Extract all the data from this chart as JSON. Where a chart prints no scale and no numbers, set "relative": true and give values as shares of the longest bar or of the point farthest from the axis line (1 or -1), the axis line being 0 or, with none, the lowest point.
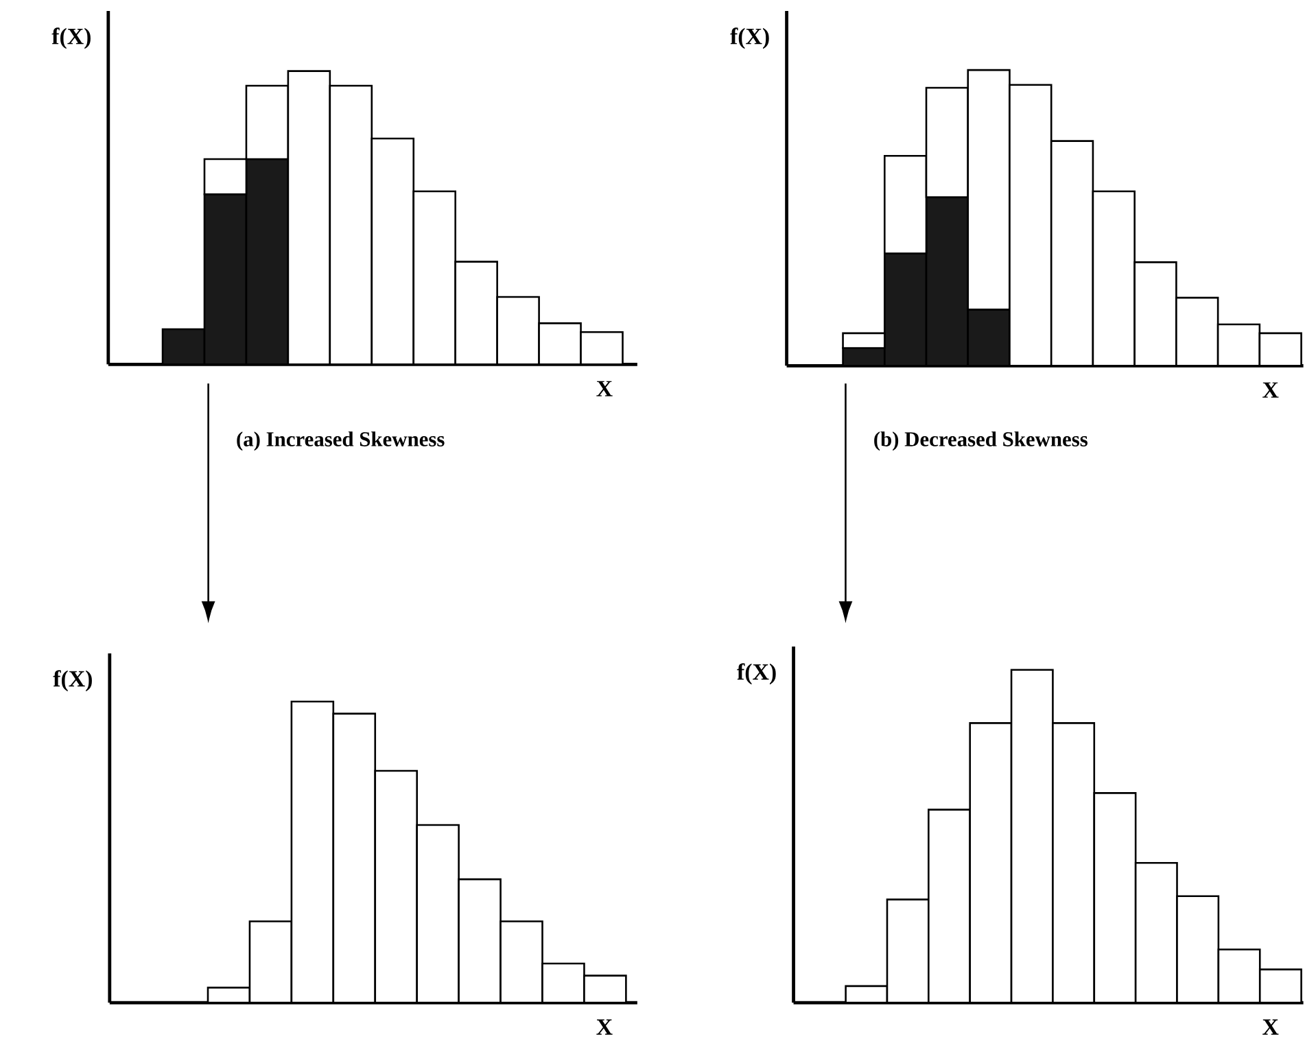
{
  "chart_data": [
    {
      "type": "bar",
      "relative": true,
      "stacked": true,
      "xlabel": "X",
      "ylabel": "f(X)",
      "categories": [
        null,
        null,
        null,
        null,
        null,
        null,
        null,
        null,
        null,
        null,
        null
      ],
      "series": [
        {
          "color": "#1a1a1a",
          "values": [
            0.12,
            0.58,
            0.7,
            null,
            null,
            null,
            null,
            null,
            null,
            null,
            null
          ]
        },
        {
          "color": "#ffffff",
          "values": [
            null,
            0.12,
            0.25,
            1.0,
            0.95,
            0.77,
            0.59,
            0.35,
            0.23,
            0.14,
            0.11
          ]
        }
      ],
      "annotations": [
        "(a) Increased Skewness"
      ]
    },
    {
      "type": "bar",
      "relative": true,
      "stacked": true,
      "xlabel": "X",
      "ylabel": "f(X)",
      "categories": [
        null,
        null,
        null,
        null,
        null,
        null,
        null,
        null,
        null,
        null,
        null
      ],
      "series": [
        {
          "color": "#1a1a1a",
          "values": [
            0.06,
            0.38,
            0.57,
            0.19,
            null,
            null,
            null,
            null,
            null,
            null,
            null
          ]
        },
        {
          "color": "#ffffff",
          "values": [
            0.05,
            0.33,
            0.37,
            0.81,
            0.95,
            0.76,
            0.59,
            0.35,
            0.23,
            0.14,
            0.11
          ]
        }
      ],
      "annotations": [
        "(b) Decreased Skewness"
      ]
    },
    {
      "type": "bar",
      "relative": true,
      "xlabel": "X",
      "ylabel": "f(X)",
      "categories": [
        null,
        null,
        null,
        null,
        null,
        null,
        null,
        null,
        null,
        null
      ],
      "series": [
        {
          "color": "#ffffff",
          "values": [
            0.05,
            0.27,
            1.0,
            0.96,
            0.77,
            0.59,
            0.41,
            0.27,
            0.13,
            0.09
          ]
        }
      ]
    },
    {
      "type": "bar",
      "relative": true,
      "xlabel": "X",
      "ylabel": "f(X)",
      "categories": [
        null,
        null,
        null,
        null,
        null,
        null,
        null,
        null,
        null,
        null,
        null
      ],
      "series": [
        {
          "color": "#ffffff",
          "values": [
            0.05,
            0.31,
            0.58,
            0.84,
            1.0,
            0.84,
            0.63,
            0.42,
            0.32,
            0.16,
            0.1
          ]
        }
      ]
    }
  ]
}
